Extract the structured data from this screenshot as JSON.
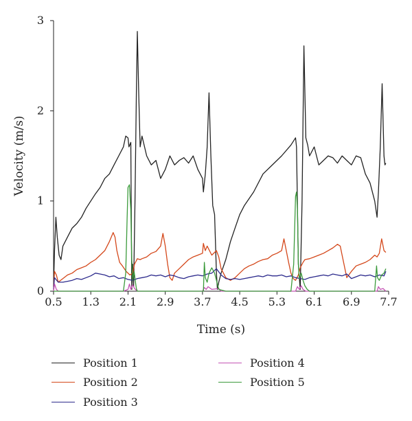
{
  "chart_data": {
    "type": "line",
    "xlabel": "Time (s)",
    "ylabel": "Velocity (m/s)",
    "xlim": [
      0.5,
      7.7
    ],
    "ylim": [
      0,
      3
    ],
    "xticks": [
      "0.5",
      "1.3",
      "2.1",
      "2.9",
      "3.7",
      "4.5",
      "5.3",
      "6.1",
      "6.9",
      "7.7"
    ],
    "yticks": [
      "0",
      "1",
      "2",
      "3"
    ],
    "grid": false,
    "legend_position": "bottom",
    "series": [
      {
        "name": "Position 1",
        "color": "#222222",
        "x": [
          0.5,
          0.52,
          0.55,
          0.58,
          0.62,
          0.66,
          0.7,
          0.8,
          0.9,
          1.0,
          1.1,
          1.2,
          1.3,
          1.4,
          1.5,
          1.6,
          1.7,
          1.8,
          1.9,
          2.0,
          2.05,
          2.1,
          2.12,
          2.16,
          2.18,
          2.2,
          2.22,
          2.25,
          2.28,
          2.3,
          2.33,
          2.36,
          2.4,
          2.5,
          2.6,
          2.7,
          2.8,
          2.9,
          3.0,
          3.1,
          3.2,
          3.3,
          3.4,
          3.5,
          3.6,
          3.7,
          3.72,
          3.76,
          3.8,
          3.84,
          3.88,
          3.92,
          3.96,
          4.0,
          4.02,
          4.05,
          4.1,
          4.2,
          4.3,
          4.4,
          4.5,
          4.6,
          4.8,
          5.0,
          5.2,
          5.4,
          5.6,
          5.7,
          5.72,
          5.76,
          5.8,
          5.84,
          5.88,
          5.92,
          5.96,
          6.0,
          6.1,
          6.2,
          6.3,
          6.4,
          6.5,
          6.6,
          6.7,
          6.8,
          6.9,
          7.0,
          7.1,
          7.2,
          7.3,
          7.4,
          7.45,
          7.48,
          7.52,
          7.56,
          7.6,
          7.62,
          7.64
        ],
        "values": [
          0.05,
          0.45,
          0.82,
          0.6,
          0.4,
          0.35,
          0.5,
          0.6,
          0.7,
          0.75,
          0.82,
          0.92,
          1.0,
          1.08,
          1.15,
          1.25,
          1.3,
          1.4,
          1.5,
          1.6,
          1.72,
          1.7,
          1.6,
          1.65,
          0.02,
          0.3,
          0.05,
          1.0,
          2.2,
          2.88,
          2.2,
          1.6,
          1.72,
          1.5,
          1.4,
          1.45,
          1.25,
          1.35,
          1.5,
          1.4,
          1.45,
          1.48,
          1.42,
          1.5,
          1.35,
          1.25,
          1.1,
          1.3,
          1.6,
          2.2,
          1.5,
          0.95,
          0.85,
          0.2,
          0.02,
          0.1,
          0.2,
          0.35,
          0.55,
          0.7,
          0.85,
          0.95,
          1.1,
          1.3,
          1.4,
          1.5,
          1.62,
          1.7,
          1.6,
          0.3,
          0.02,
          1.0,
          2.72,
          1.7,
          1.62,
          1.5,
          1.6,
          1.4,
          1.45,
          1.5,
          1.48,
          1.42,
          1.5,
          1.45,
          1.4,
          1.5,
          1.48,
          1.3,
          1.2,
          1.0,
          0.82,
          1.1,
          1.6,
          2.3,
          1.5,
          1.4,
          1.42
        ]
      },
      {
        "name": "Position 2",
        "color": "#d4471a",
        "x": [
          0.5,
          0.52,
          0.56,
          0.6,
          0.7,
          0.8,
          0.9,
          1.0,
          1.1,
          1.2,
          1.3,
          1.4,
          1.5,
          1.6,
          1.7,
          1.78,
          1.82,
          1.86,
          1.92,
          1.98,
          2.06,
          2.14,
          2.2,
          2.24,
          2.3,
          2.36,
          2.4,
          2.5,
          2.6,
          2.7,
          2.8,
          2.85,
          2.9,
          2.95,
          3.0,
          3.05,
          3.1,
          3.2,
          3.3,
          3.4,
          3.5,
          3.6,
          3.7,
          3.72,
          3.76,
          3.8,
          3.9,
          4.0,
          4.05,
          4.1,
          4.2,
          4.3,
          4.4,
          4.5,
          4.6,
          4.7,
          4.8,
          4.9,
          5.0,
          5.1,
          5.2,
          5.3,
          5.4,
          5.45,
          5.5,
          5.55,
          5.6,
          5.65,
          5.7,
          5.76,
          5.8,
          5.86,
          5.9,
          6.0,
          6.1,
          6.2,
          6.3,
          6.4,
          6.5,
          6.6,
          6.66,
          6.7,
          6.76,
          6.8,
          6.9,
          7.0,
          7.1,
          7.2,
          7.3,
          7.4,
          7.45,
          7.5,
          7.55,
          7.6,
          7.64
        ],
        "values": [
          0.02,
          0.22,
          0.18,
          0.1,
          0.14,
          0.18,
          0.2,
          0.24,
          0.26,
          0.28,
          0.32,
          0.35,
          0.4,
          0.45,
          0.55,
          0.65,
          0.6,
          0.45,
          0.32,
          0.28,
          0.22,
          0.18,
          0.2,
          0.3,
          0.36,
          0.35,
          0.36,
          0.38,
          0.42,
          0.44,
          0.5,
          0.64,
          0.5,
          0.3,
          0.15,
          0.12,
          0.2,
          0.25,
          0.3,
          0.35,
          0.38,
          0.4,
          0.42,
          0.53,
          0.45,
          0.5,
          0.4,
          0.45,
          0.38,
          0.25,
          0.15,
          0.12,
          0.15,
          0.2,
          0.25,
          0.28,
          0.3,
          0.33,
          0.35,
          0.36,
          0.4,
          0.42,
          0.45,
          0.58,
          0.45,
          0.32,
          0.2,
          0.14,
          0.12,
          0.18,
          0.26,
          0.32,
          0.35,
          0.36,
          0.38,
          0.4,
          0.42,
          0.45,
          0.48,
          0.52,
          0.5,
          0.4,
          0.25,
          0.15,
          0.22,
          0.28,
          0.3,
          0.32,
          0.35,
          0.4,
          0.38,
          0.42,
          0.58,
          0.45,
          0.43
        ]
      },
      {
        "name": "Position 3",
        "color": "#2c2a8c",
        "x": [
          0.5,
          0.52,
          0.6,
          0.7,
          0.8,
          0.9,
          1.0,
          1.1,
          1.2,
          1.3,
          1.4,
          1.5,
          1.6,
          1.7,
          1.8,
          1.9,
          2.0,
          2.1,
          2.2,
          2.3,
          2.4,
          2.5,
          2.6,
          2.7,
          2.8,
          2.9,
          3.0,
          3.1,
          3.2,
          3.3,
          3.4,
          3.5,
          3.6,
          3.7,
          3.8,
          3.9,
          4.0,
          4.1,
          4.2,
          4.3,
          4.4,
          4.5,
          4.6,
          4.7,
          4.8,
          4.9,
          5.0,
          5.1,
          5.2,
          5.3,
          5.4,
          5.5,
          5.6,
          5.7,
          5.8,
          5.9,
          6.0,
          6.1,
          6.2,
          6.3,
          6.4,
          6.5,
          6.6,
          6.7,
          6.8,
          6.9,
          7.0,
          7.1,
          7.2,
          7.3,
          7.4,
          7.5,
          7.6,
          7.64
        ],
        "values": [
          0.02,
          0.15,
          0.1,
          0.1,
          0.11,
          0.12,
          0.14,
          0.13,
          0.15,
          0.17,
          0.2,
          0.19,
          0.18,
          0.16,
          0.17,
          0.14,
          0.15,
          0.13,
          0.12,
          0.14,
          0.15,
          0.16,
          0.18,
          0.17,
          0.18,
          0.16,
          0.18,
          0.17,
          0.15,
          0.14,
          0.16,
          0.17,
          0.18,
          0.17,
          0.19,
          0.2,
          0.25,
          0.18,
          0.14,
          0.13,
          0.14,
          0.13,
          0.14,
          0.15,
          0.16,
          0.17,
          0.16,
          0.18,
          0.17,
          0.17,
          0.18,
          0.16,
          0.17,
          0.15,
          0.14,
          0.13,
          0.15,
          0.16,
          0.17,
          0.18,
          0.17,
          0.19,
          0.18,
          0.17,
          0.19,
          0.14,
          0.16,
          0.18,
          0.17,
          0.18,
          0.16,
          0.18,
          0.17,
          0.22
        ]
      },
      {
        "name": "Position 4",
        "color": "#c454b4",
        "x": [
          0.5,
          0.52,
          0.56,
          0.6,
          1.0,
          2.0,
          2.1,
          2.13,
          2.16,
          2.2,
          2.24,
          2.3,
          3.0,
          3.7,
          3.74,
          3.78,
          3.82,
          3.9,
          4.05,
          4.1,
          4.2,
          5.0,
          5.7,
          5.74,
          5.78,
          5.82,
          5.86,
          5.92,
          6.0,
          7.0,
          7.45,
          7.48,
          7.52,
          7.58,
          7.64
        ],
        "values": [
          0.0,
          0.08,
          0.02,
          0.0,
          0.0,
          0.0,
          0.02,
          0.08,
          0.02,
          0.07,
          0.03,
          0.0,
          0.0,
          0.0,
          0.04,
          0.02,
          0.05,
          0.02,
          0.03,
          0.0,
          0.0,
          0.0,
          0.0,
          0.05,
          0.02,
          0.06,
          0.02,
          0.0,
          0.0,
          0.0,
          0.0,
          0.05,
          0.02,
          0.03,
          0.0
        ]
      },
      {
        "name": "Position 5",
        "color": "#3b9a3b",
        "x": [
          0.5,
          1.0,
          1.8,
          2.0,
          2.05,
          2.08,
          2.1,
          2.13,
          2.16,
          2.18,
          2.2,
          2.23,
          2.26,
          2.28,
          2.3,
          2.4,
          3.0,
          3.6,
          3.72,
          3.74,
          3.76,
          3.8,
          3.84,
          3.9,
          3.96,
          4.0,
          4.05,
          4.2,
          5.0,
          5.6,
          5.66,
          5.7,
          5.72,
          5.74,
          5.76,
          5.78,
          5.82,
          5.86,
          5.9,
          5.95,
          6.0,
          7.0,
          7.4,
          7.44,
          7.46,
          7.5,
          7.55,
          7.6,
          7.64
        ],
        "values": [
          0.0,
          0.0,
          0.0,
          0.0,
          0.2,
          0.8,
          1.15,
          1.18,
          0.9,
          0.35,
          0.12,
          0.22,
          0.1,
          0.03,
          0.0,
          0.0,
          0.0,
          0.0,
          0.0,
          0.32,
          0.15,
          0.1,
          0.2,
          0.26,
          0.2,
          0.12,
          0.02,
          0.0,
          0.0,
          0.0,
          0.3,
          1.05,
          1.1,
          0.9,
          0.3,
          0.14,
          0.2,
          0.12,
          0.06,
          0.02,
          0.0,
          0.0,
          0.0,
          0.28,
          0.15,
          0.12,
          0.18,
          0.2,
          0.25
        ]
      }
    ]
  }
}
